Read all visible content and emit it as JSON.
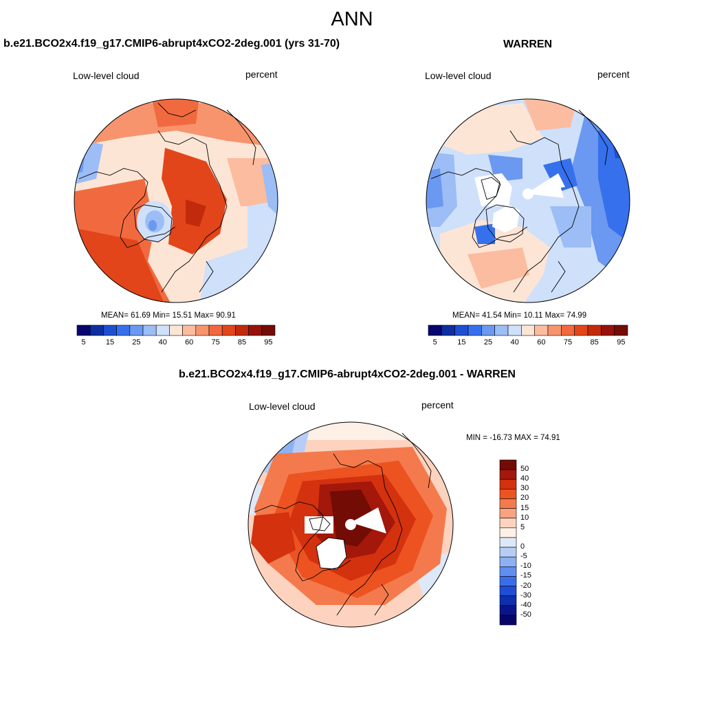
{
  "title": "ANN",
  "panels": [
    {
      "name": "case",
      "header": "b.e21.BCO2x4.f19_g17.CMIP6-abrupt4xCO2-2deg.001 (yrs 31-70)",
      "variable": "Low-level cloud",
      "units": "percent",
      "stats": "MEAN=  61.69  Min=  15.51  Max=  90.91",
      "colorbar": {
        "colors": [
          "#08066e",
          "#0f2fa0",
          "#1d4fd1",
          "#3670ec",
          "#6b98f0",
          "#9cbdf5",
          "#cfe0fa",
          "#fde5d5",
          "#fbbca0",
          "#f7946e",
          "#f16a3f",
          "#e2451a",
          "#c22a0c",
          "#96120a",
          "#720c05"
        ],
        "labels": [
          "5",
          "15",
          "25",
          "40",
          "60",
          "75",
          "85",
          "95"
        ]
      }
    },
    {
      "name": "obs",
      "header": "WARREN",
      "variable": "Low-level cloud",
      "units": "percent",
      "stats": "MEAN=  41.54  Min=  10.11  Max=  74.99",
      "colorbar": {
        "colors": [
          "#08066e",
          "#0f2fa0",
          "#1d4fd1",
          "#3670ec",
          "#6b98f0",
          "#9cbdf5",
          "#cfe0fa",
          "#fde5d5",
          "#fbbca0",
          "#f7946e",
          "#f16a3f",
          "#e2451a",
          "#c22a0c",
          "#96120a",
          "#720c05"
        ],
        "labels": [
          "5",
          "15",
          "25",
          "40",
          "60",
          "75",
          "85",
          "95"
        ]
      }
    },
    {
      "name": "diff",
      "header": "b.e21.BCO2x4.f19_g17.CMIP6-abrupt4xCO2-2deg.001 - WARREN",
      "variable": "Low-level cloud",
      "units": "percent",
      "stats": "MIN = -16.73 MAX =  74.91",
      "colorbar": {
        "colors": [
          "#720c05",
          "#a3180a",
          "#d4310f",
          "#ec5320",
          "#f47a4d",
          "#f9a27f",
          "#fdd3bf",
          "#fdf0e6",
          "#dde8f8",
          "#b7cdf6",
          "#8eb1f3",
          "#5f8ff0",
          "#3a6ee9",
          "#1f4ed6",
          "#0d2fad",
          "#0a158c",
          "#06066a"
        ],
        "labels": [
          "50",
          "40",
          "30",
          "20",
          "15",
          "10",
          "5",
          "0",
          "-5",
          "-10",
          "-15",
          "-20",
          "-30",
          "-40",
          "-50"
        ]
      }
    }
  ]
}
